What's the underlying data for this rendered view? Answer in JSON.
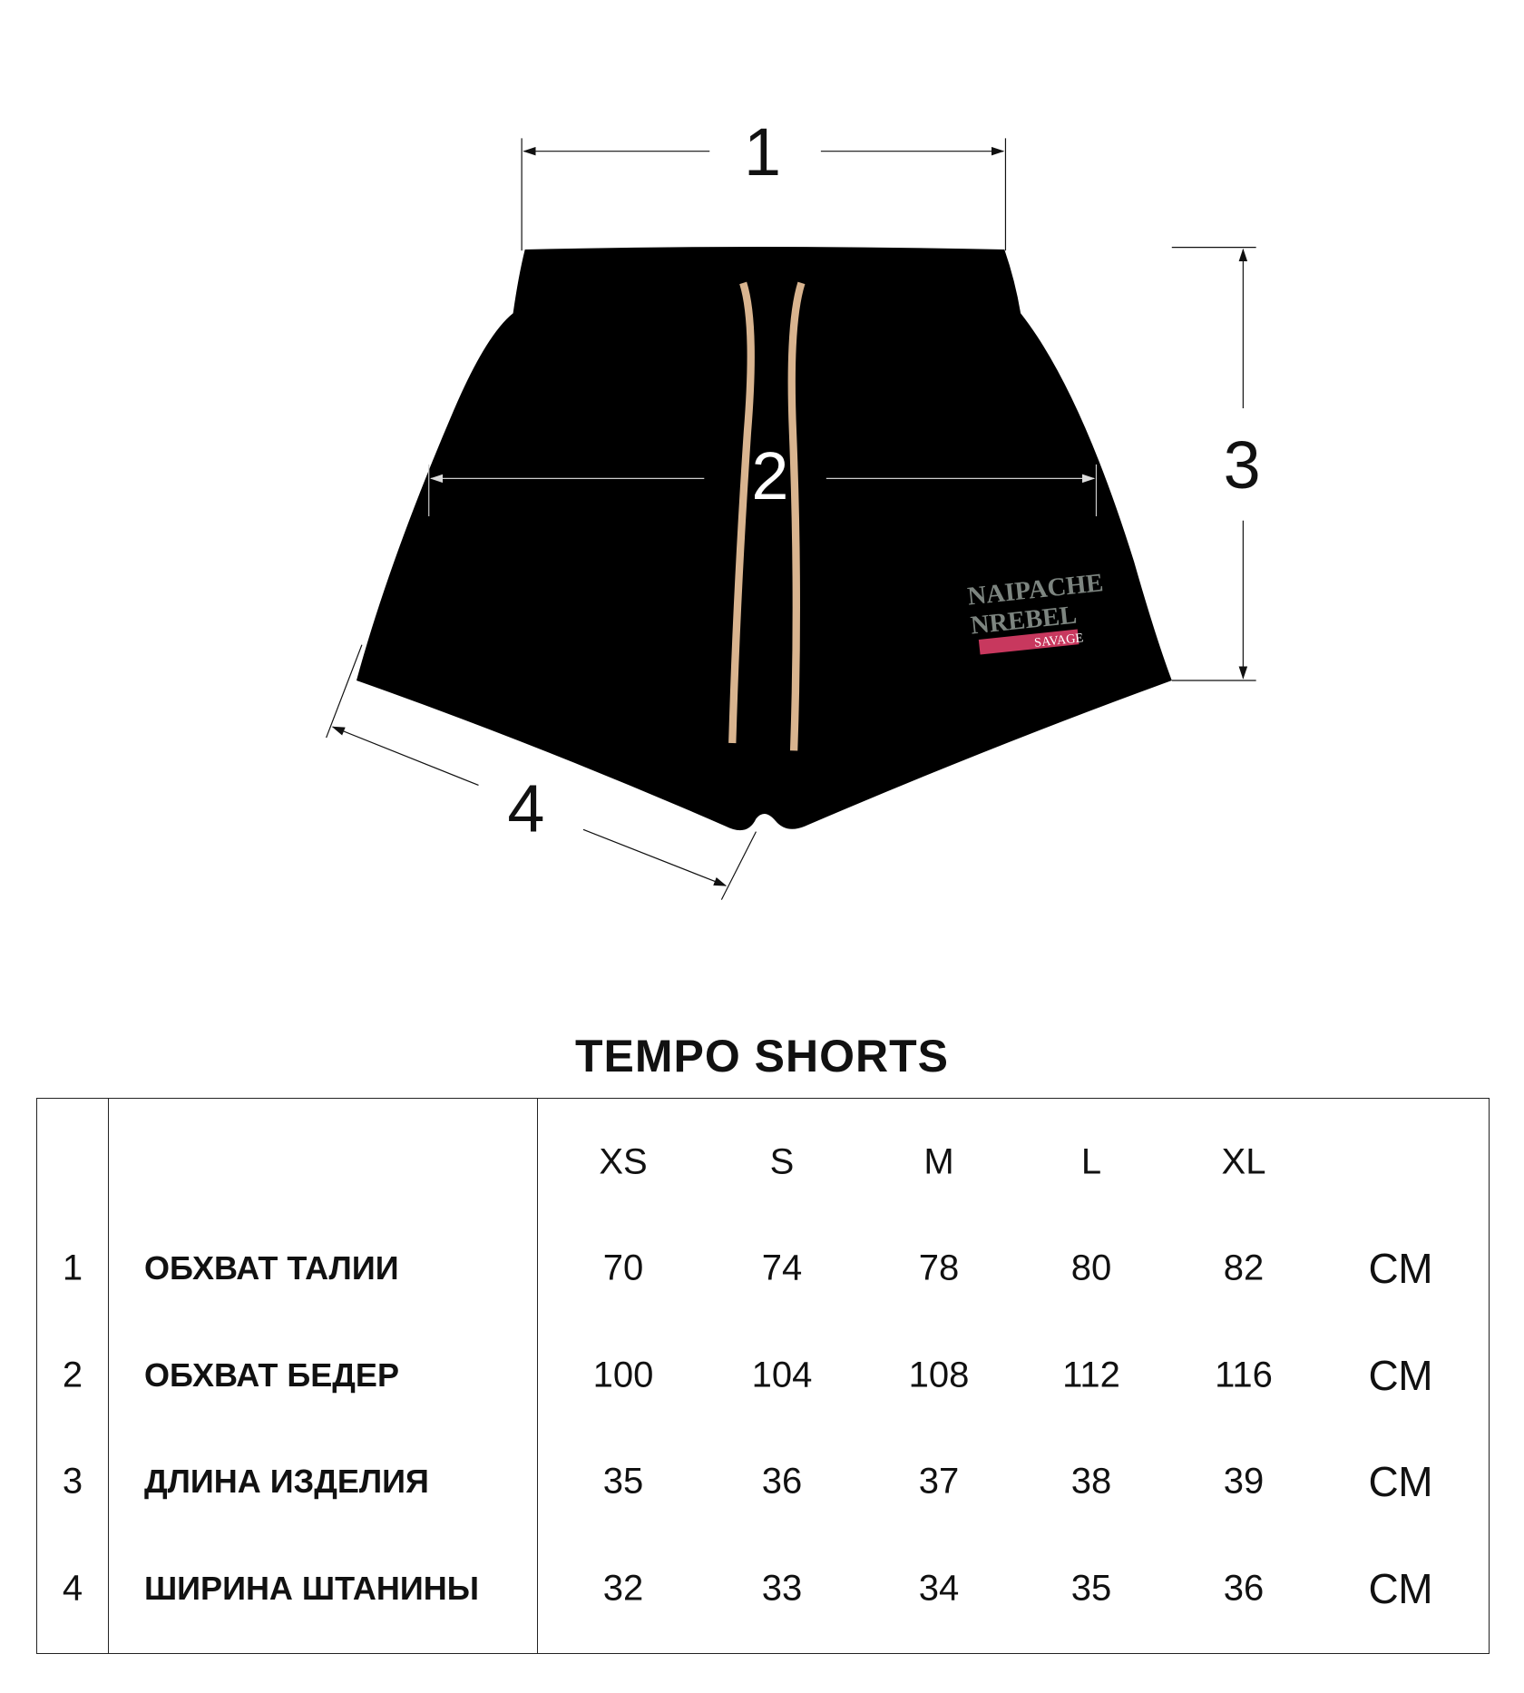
{
  "diagram": {
    "dimension_labels": [
      "1",
      "2",
      "3",
      "4"
    ],
    "logo": {
      "line1": "NAIPACHE",
      "line2": "REBEL",
      "tag": "SAVAGE"
    },
    "colors": {
      "garment": "#000000",
      "drawstring": "#d9b48f",
      "logo_tag": "#c8385e"
    }
  },
  "table": {
    "title": "TEMPO SHORTS",
    "sizes": [
      "XS",
      "S",
      "M",
      "L",
      "XL"
    ],
    "rows": [
      {
        "num": "1",
        "label": "ОБХВАТ ТАЛИИ",
        "values": [
          "70",
          "74",
          "78",
          "80",
          "82"
        ],
        "unit": "СМ"
      },
      {
        "num": "2",
        "label": "ОБХВАТ БЕДЕР",
        "values": [
          "100",
          "104",
          "108",
          "112",
          "116"
        ],
        "unit": "СМ"
      },
      {
        "num": "3",
        "label": "ДЛИНА ИЗДЕЛИЯ",
        "values": [
          "35",
          "36",
          "37",
          "38",
          "39"
        ],
        "unit": "СМ"
      },
      {
        "num": "4",
        "label": "ШИРИНА ШТАНИНЫ",
        "values": [
          "32",
          "33",
          "34",
          "35",
          "36"
        ],
        "unit": "СМ"
      }
    ]
  }
}
